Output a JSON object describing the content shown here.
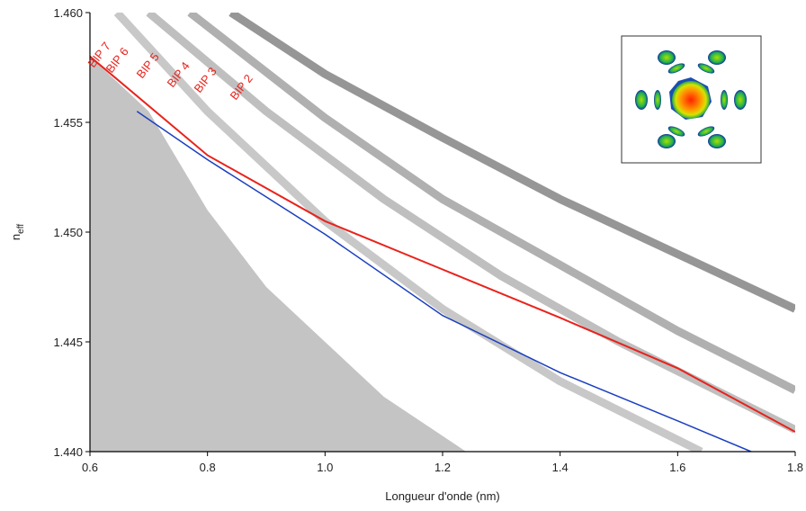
{
  "chart_data": {
    "type": "line",
    "x_label": "Longueur d'onde (nm)",
    "y_label": "n",
    "y_label_subscript": "eff",
    "xlim": [
      0.6,
      1.8
    ],
    "ylim": [
      1.44,
      1.46
    ],
    "xticks": [
      0.6,
      0.8,
      {
        "value": 1.0,
        "label": "1.0"
      },
      1.2,
      1.4,
      1.6,
      1.8
    ],
    "yticks": [
      {
        "value": 1.44,
        "label": "1.440"
      },
      1.445,
      {
        "value": 1.45,
        "label": "1.450"
      },
      1.455,
      {
        "value": 1.46,
        "label": "1.460"
      }
    ],
    "grid": false,
    "annotations": [
      "BIP 7",
      "BIP 6",
      "BIP 5",
      "BIP 4",
      "BIP 3",
      "BIP 2"
    ],
    "annotation_color": "#e8231c",
    "series": [
      {
        "color": "#c4c4c4",
        "fill": true,
        "x": [
          0.6,
          0.7,
          0.8,
          0.9,
          1.0,
          1.1,
          1.24
        ],
        "values": [
          1.458,
          1.4555,
          1.451,
          1.4475,
          1.445,
          1.4425,
          1.44
        ]
      },
      {
        "color": "#9a9a9a",
        "band": true,
        "x": [
          0.646,
          0.8,
          1.0,
          1.2,
          1.4,
          1.64
        ],
        "values": [
          1.46,
          1.4555,
          1.4505,
          1.4465,
          1.4432,
          1.44
        ]
      },
      {
        "color": "#8a8a8a",
        "band": true,
        "x": [
          0.7,
          0.9,
          1.1,
          1.3,
          1.5,
          1.8
        ],
        "values": [
          1.46,
          1.4555,
          1.4515,
          1.448,
          1.445,
          1.441
        ]
      },
      {
        "color": "#707070",
        "band": true,
        "x": [
          0.77,
          1.0,
          1.2,
          1.4,
          1.6,
          1.8
        ],
        "values": [
          1.46,
          1.4552,
          1.4515,
          1.4485,
          1.4455,
          1.4428
        ]
      },
      {
        "color": "#404040",
        "band": true,
        "x": [
          0.84,
          1.0,
          1.2,
          1.4,
          1.6,
          1.8
        ],
        "values": [
          1.46,
          1.4572,
          1.4543,
          1.4515,
          1.449,
          1.4465
        ]
      },
      {
        "color": "#1a3fbf",
        "x": [
          0.68,
          0.8,
          1.0,
          1.2,
          1.4,
          1.6,
          1.725
        ],
        "values": [
          1.4555,
          1.4533,
          1.4499,
          1.4462,
          1.4436,
          1.4414,
          1.44
        ]
      },
      {
        "color": "#e8231c",
        "x": [
          0.6,
          0.8,
          1.0,
          1.2,
          1.4,
          1.6,
          1.8
        ],
        "values": [
          1.458,
          1.4535,
          1.4505,
          1.4483,
          1.4461,
          1.4438,
          1.4409
        ]
      }
    ]
  }
}
